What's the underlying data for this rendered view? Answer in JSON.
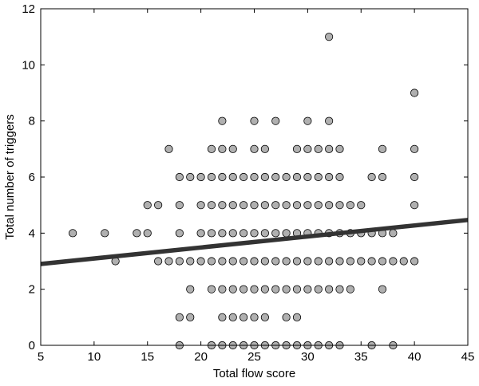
{
  "chart_data": {
    "type": "scatter",
    "title": "",
    "xlabel": "Total flow score",
    "ylabel": "Total number of triggers",
    "xlim": [
      5,
      45
    ],
    "ylim": [
      0,
      12
    ],
    "xticks": [
      "5",
      "10",
      "15",
      "20",
      "25",
      "30",
      "35",
      "40",
      "45"
    ],
    "yticks": [
      "0",
      "2",
      "4",
      "6",
      "8",
      "10",
      "12"
    ],
    "grid": false,
    "legend": "none",
    "marker_fill": "#b0b0b0",
    "marker_edge": "#000000",
    "line_color": "#333333",
    "regression_line": {
      "x": [
        5,
        45
      ],
      "y": [
        2.9,
        4.47
      ]
    },
    "points": [
      [
        8,
        4
      ],
      [
        11,
        4
      ],
      [
        12,
        3
      ],
      [
        14,
        4
      ],
      [
        15,
        4
      ],
      [
        15,
        5
      ],
      [
        16,
        5
      ],
      [
        16,
        3
      ],
      [
        17,
        7
      ],
      [
        17,
        3
      ],
      [
        18,
        6
      ],
      [
        18,
        5
      ],
      [
        18,
        4
      ],
      [
        18,
        3
      ],
      [
        18,
        1
      ],
      [
        18,
        0
      ],
      [
        19,
        6
      ],
      [
        19,
        3
      ],
      [
        19,
        2
      ],
      [
        19,
        1
      ],
      [
        20,
        6
      ],
      [
        20,
        5
      ],
      [
        20,
        4
      ],
      [
        20,
        3
      ],
      [
        21,
        7
      ],
      [
        21,
        6
      ],
      [
        21,
        5
      ],
      [
        21,
        4
      ],
      [
        21,
        3
      ],
      [
        21,
        2
      ],
      [
        21,
        0
      ],
      [
        22,
        8
      ],
      [
        22,
        7
      ],
      [
        22,
        6
      ],
      [
        22,
        5
      ],
      [
        22,
        4
      ],
      [
        22,
        3
      ],
      [
        22,
        2
      ],
      [
        22,
        1
      ],
      [
        22,
        0
      ],
      [
        23,
        7
      ],
      [
        23,
        6
      ],
      [
        23,
        5
      ],
      [
        23,
        4
      ],
      [
        23,
        3
      ],
      [
        23,
        2
      ],
      [
        23,
        1
      ],
      [
        23,
        0
      ],
      [
        24,
        6
      ],
      [
        24,
        5
      ],
      [
        24,
        4
      ],
      [
        24,
        3
      ],
      [
        24,
        2
      ],
      [
        24,
        1
      ],
      [
        24,
        0
      ],
      [
        25,
        8
      ],
      [
        25,
        7
      ],
      [
        25,
        6
      ],
      [
        25,
        5
      ],
      [
        25,
        4
      ],
      [
        25,
        3
      ],
      [
        25,
        2
      ],
      [
        25,
        1
      ],
      [
        25,
        0
      ],
      [
        26,
        7
      ],
      [
        26,
        6
      ],
      [
        26,
        5
      ],
      [
        26,
        4
      ],
      [
        26,
        3
      ],
      [
        26,
        2
      ],
      [
        26,
        1
      ],
      [
        26,
        0
      ],
      [
        27,
        8
      ],
      [
        27,
        6
      ],
      [
        27,
        5
      ],
      [
        27,
        4
      ],
      [
        27,
        3
      ],
      [
        27,
        2
      ],
      [
        27,
        0
      ],
      [
        28,
        6
      ],
      [
        28,
        5
      ],
      [
        28,
        4
      ],
      [
        28,
        3
      ],
      [
        28,
        2
      ],
      [
        28,
        1
      ],
      [
        28,
        0
      ],
      [
        29,
        7
      ],
      [
        29,
        6
      ],
      [
        29,
        5
      ],
      [
        29,
        4
      ],
      [
        29,
        3
      ],
      [
        29,
        2
      ],
      [
        29,
        1
      ],
      [
        29,
        0
      ],
      [
        30,
        8
      ],
      [
        30,
        7
      ],
      [
        30,
        6
      ],
      [
        30,
        5
      ],
      [
        30,
        4
      ],
      [
        30,
        3
      ],
      [
        30,
        2
      ],
      [
        30,
        0
      ],
      [
        31,
        7
      ],
      [
        31,
        6
      ],
      [
        31,
        5
      ],
      [
        31,
        4
      ],
      [
        31,
        3
      ],
      [
        31,
        2
      ],
      [
        31,
        0
      ],
      [
        32,
        11
      ],
      [
        32,
        8
      ],
      [
        32,
        7
      ],
      [
        32,
        6
      ],
      [
        32,
        5
      ],
      [
        32,
        4
      ],
      [
        32,
        3
      ],
      [
        32,
        2
      ],
      [
        32,
        0
      ],
      [
        33,
        7
      ],
      [
        33,
        6
      ],
      [
        33,
        5
      ],
      [
        33,
        4
      ],
      [
        33,
        3
      ],
      [
        33,
        2
      ],
      [
        33,
        0
      ],
      [
        34,
        5
      ],
      [
        34,
        4
      ],
      [
        34,
        3
      ],
      [
        34,
        2
      ],
      [
        35,
        5
      ],
      [
        35,
        4
      ],
      [
        35,
        3
      ],
      [
        36,
        6
      ],
      [
        36,
        4
      ],
      [
        36,
        3
      ],
      [
        36,
        0
      ],
      [
        37,
        7
      ],
      [
        37,
        6
      ],
      [
        37,
        4
      ],
      [
        37,
        3
      ],
      [
        37,
        2
      ],
      [
        38,
        4
      ],
      [
        38,
        3
      ],
      [
        38,
        0
      ],
      [
        39,
        3
      ],
      [
        40,
        9
      ],
      [
        40,
        7
      ],
      [
        40,
        6
      ],
      [
        40,
        5
      ],
      [
        40,
        3
      ]
    ]
  }
}
